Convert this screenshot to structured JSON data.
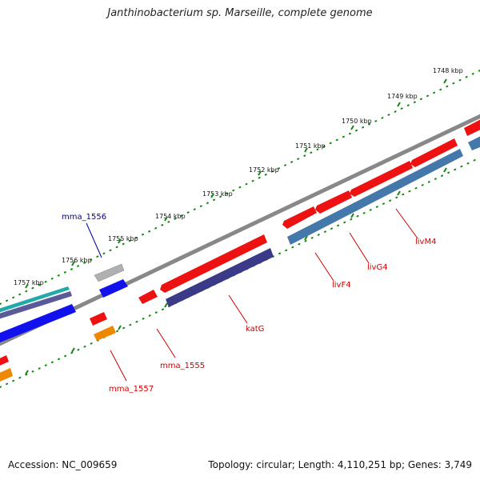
{
  "title": "Janthinobacterium sp. Marseille, complete genome",
  "footer": {
    "accession": "Accession: NC_009659",
    "stats": "Topology: circular; Length: 4,110,251 bp; Genes: 3,749"
  },
  "ruler_labels": [
    "1748 kbp",
    "1749 kbp",
    "1750 kbp",
    "1751 kbp",
    "1752 kbp",
    "1753 kbp",
    "1754 kbp",
    "1755 kbp",
    "1756 kbp",
    "1757 kbp"
  ],
  "gene_labels": {
    "mma_1556": "mma_1556",
    "mma_1555": "mma_1555",
    "mma_1557": "mma_1557",
    "katG": "katG",
    "livF4": "livF4",
    "livG4": "livG4",
    "livM4": "livM4"
  },
  "colors": {
    "backbone": "#808080",
    "red": "#ee1111",
    "blue": "#1111ee",
    "steelblue": "#4477aa",
    "purple": "#3a3a88",
    "gray": "#aaaaaa",
    "orange": "#ee8800",
    "teal": "#22aaaa",
    "tick": "#118811",
    "label_red": "#cc0000",
    "label_blue": "#000099"
  }
}
